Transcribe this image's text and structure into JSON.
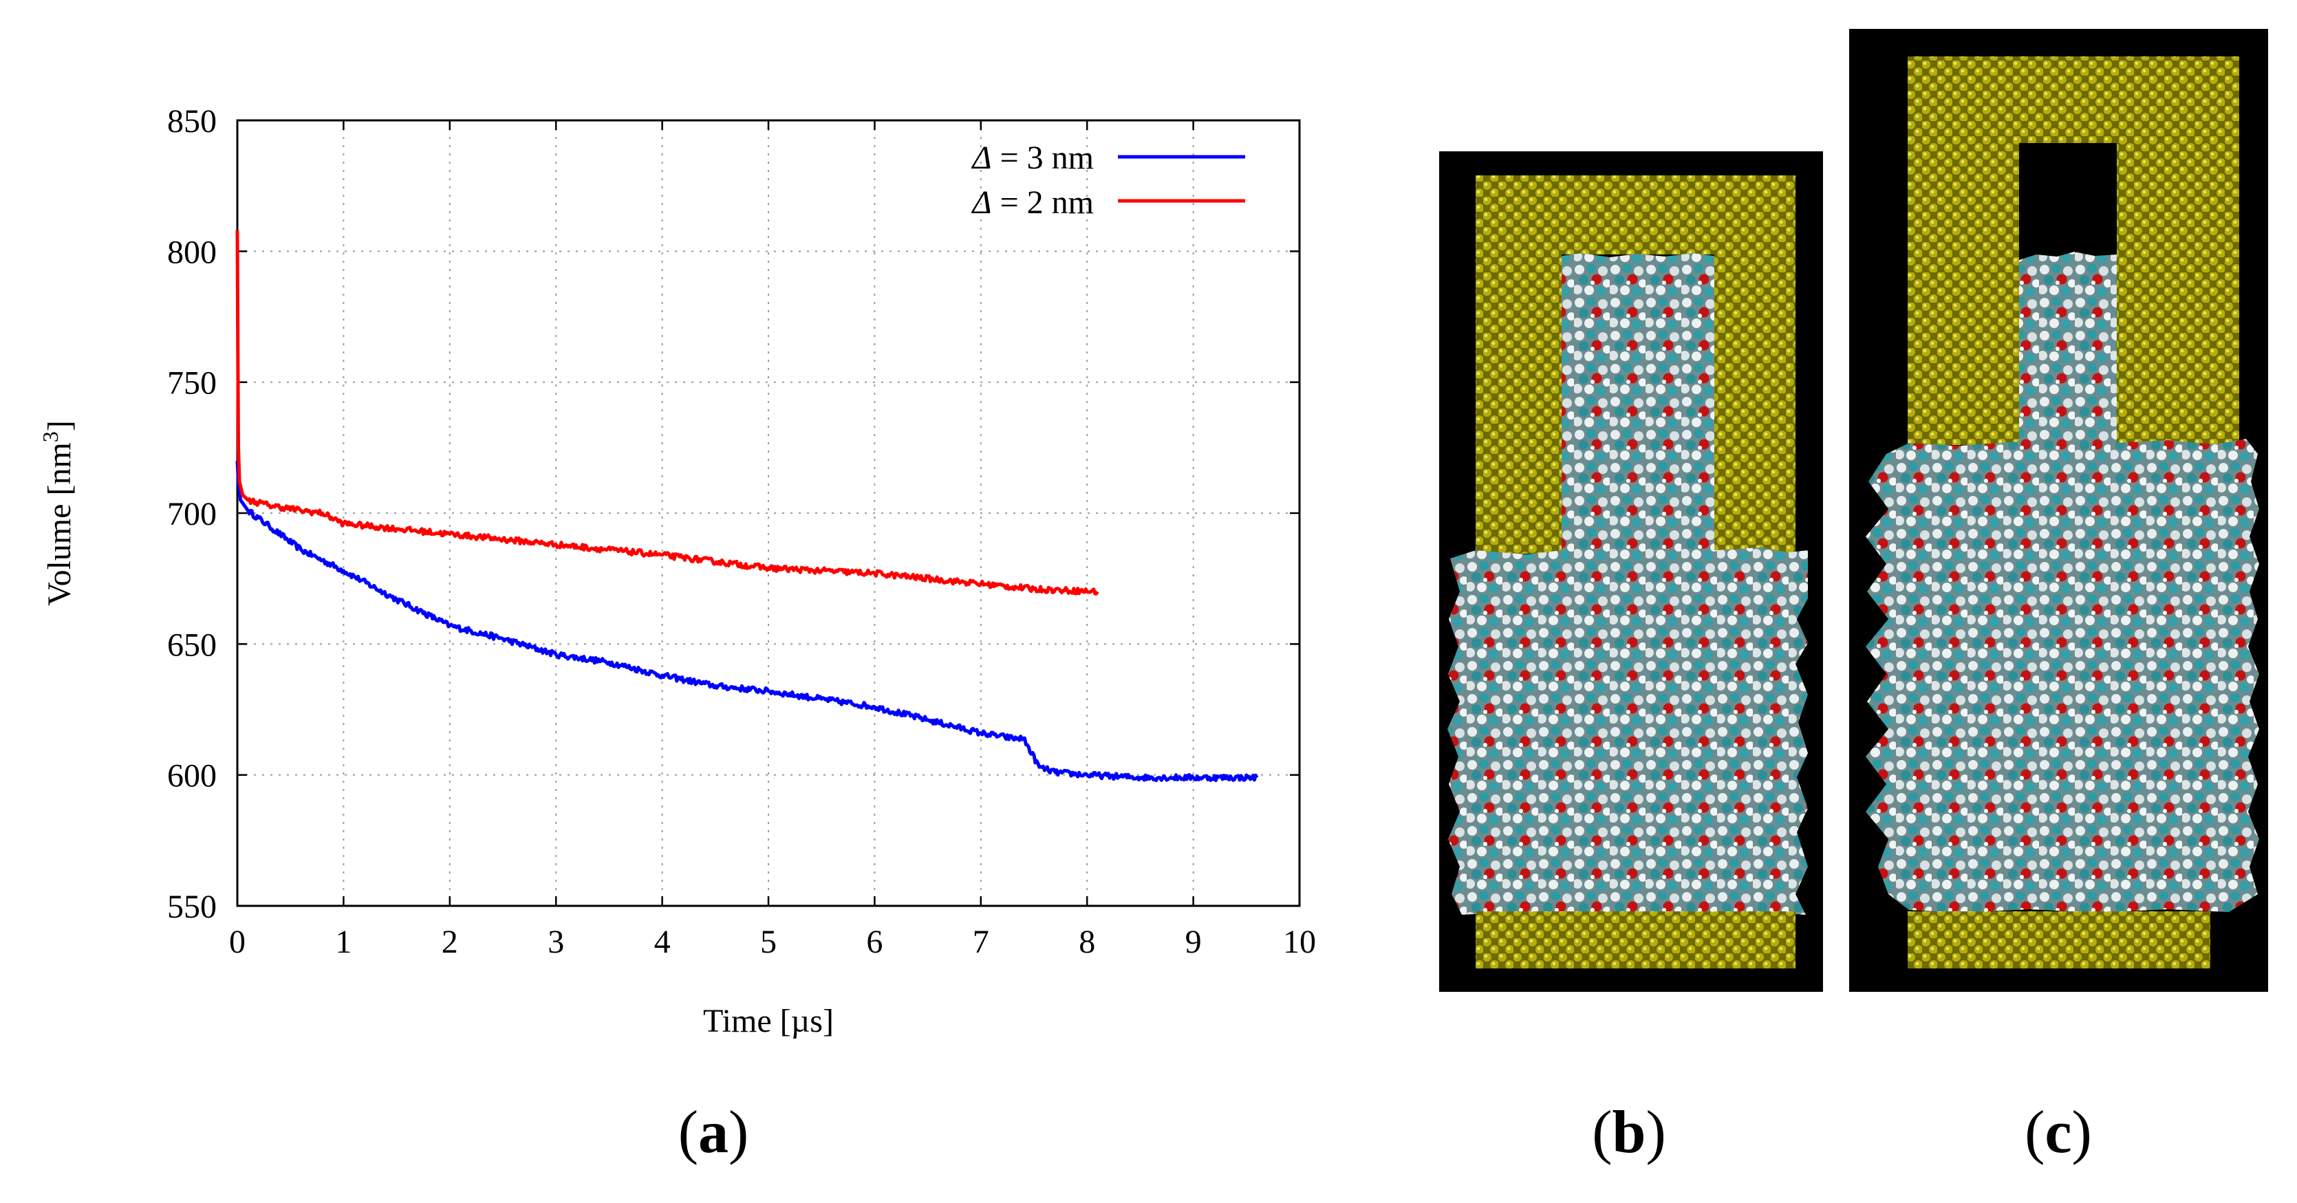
{
  "chart_data": {
    "type": "line",
    "xlabel": "Time [µs]",
    "ylabel_main": "Volume [nm",
    "ylabel_sup": "3",
    "ylabel_close": "]",
    "xlim": [
      0,
      10
    ],
    "ylim": [
      550,
      850
    ],
    "xticks": [
      0,
      1,
      2,
      3,
      4,
      5,
      6,
      7,
      8,
      9,
      10
    ],
    "yticks": [
      550,
      600,
      650,
      700,
      750,
      800,
      850
    ],
    "grid": true,
    "legend_position": "top-right",
    "series": [
      {
        "name": "Δ = 3 nm",
        "legend_symbol": "Δ",
        "legend_rest": " = 3 nm",
        "color": "#0000ff",
        "x": [
          0,
          0.01,
          0.03,
          0.1,
          0.3,
          0.6,
          0.8,
          1.0,
          1.5,
          2.0,
          2.5,
          3.0,
          3.5,
          4.0,
          4.5,
          5.0,
          5.5,
          6.0,
          6.5,
          7.0,
          7.3,
          7.4,
          7.55,
          7.7,
          8.0,
          8.5,
          9.0,
          9.6
        ],
        "y": [
          720,
          712,
          705,
          701,
          695,
          686,
          682,
          678,
          667,
          657,
          652,
          646,
          643,
          638,
          634,
          632,
          629,
          626,
          621,
          616,
          614,
          614,
          603,
          601,
          600,
          599,
          599,
          599
        ]
      },
      {
        "name": "Δ = 2 nm",
        "legend_symbol": "Δ",
        "legend_rest": " = 2 nm",
        "color": "#ff0000",
        "x": [
          0,
          0.005,
          0.01,
          0.02,
          0.05,
          0.1,
          0.3,
          0.6,
          0.8,
          1.0,
          1.5,
          2.0,
          3.0,
          4.0,
          5.0,
          5.5,
          6.0,
          7.0,
          7.5,
          8.1
        ],
        "y": [
          808,
          760,
          725,
          712,
          707,
          705,
          703,
          701,
          700,
          696,
          694,
          692,
          688,
          684,
          679,
          678,
          677,
          673,
          671,
          670
        ]
      }
    ],
    "panel_labels": [
      "a",
      "b",
      "c"
    ]
  },
  "images": [
    {
      "id": "b",
      "description": "Molecular dynamics snapshot: yellow crystalline confinement walls with red/cyan/white molecular liquid in a 3 nm pore"
    },
    {
      "id": "c",
      "description": "Molecular dynamics snapshot: yellow crystalline confinement walls with red/cyan/white molecular liquid in a 2 nm pore"
    }
  ],
  "colors": {
    "wall": "#b8b000",
    "wall_dark": "#6e6a00",
    "liquid_cyan": "#2f9aa3",
    "liquid_red": "#c01010",
    "liquid_white": "#dfe6e8",
    "background": "#000000"
  }
}
